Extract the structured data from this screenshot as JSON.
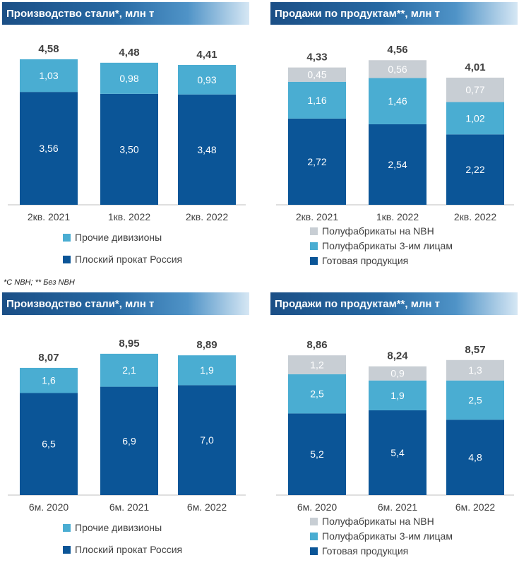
{
  "colors": {
    "dark": "#0b5597",
    "mid": "#4aadd2",
    "light": "#c8ced4",
    "text_dark": "#ffffff",
    "text_mid": "#ffffff",
    "text_light": "#ffffff",
    "total": "#404040"
  },
  "footnote": "*С NBH; ** Без NBH",
  "chart_data": [
    {
      "type": "bar",
      "stacked": true,
      "title": "Производство стали*, млн т",
      "categories": [
        "2кв. 2021",
        "1кв. 2022",
        "2кв. 2022"
      ],
      "series": [
        {
          "name": "Плоский прокат Россия",
          "color_key": "dark",
          "values": [
            3.56,
            3.5,
            3.48
          ],
          "labels": [
            "3,56",
            "3,50",
            "3,48"
          ]
        },
        {
          "name": "Прочие дивизионы",
          "color_key": "mid",
          "values": [
            1.03,
            0.98,
            0.93
          ],
          "labels": [
            "1,03",
            "0,98",
            "0,93"
          ]
        }
      ],
      "totals": [
        4.58,
        4.48,
        4.41
      ],
      "total_labels": [
        "4,58",
        "4,48",
        "4,41"
      ],
      "ylim": [
        0,
        5.1
      ],
      "legend": [
        "Прочие дивизионы",
        "Плоский прокат Россия"
      ],
      "legend_placement": "bottom-left"
    },
    {
      "type": "bar",
      "stacked": true,
      "title": "Продажи по продуктам**, млн т",
      "categories": [
        "2кв. 2021",
        "1кв. 2022",
        "2кв. 2022"
      ],
      "series": [
        {
          "name": "Готовая продукция",
          "color_key": "dark",
          "values": [
            2.72,
            2.54,
            2.22
          ],
          "labels": [
            "2,72",
            "2,54",
            "2,22"
          ]
        },
        {
          "name": "Полуфабрикаты 3-им лицам",
          "color_key": "mid",
          "values": [
            1.16,
            1.46,
            1.02
          ],
          "labels": [
            "1,16",
            "1,46",
            "1,02"
          ]
        },
        {
          "name": "Полуфабрикаты на NBH",
          "color_key": "light",
          "values": [
            0.45,
            0.56,
            0.77
          ],
          "labels": [
            "0,45",
            "0,56",
            "0,77"
          ]
        }
      ],
      "totals": [
        4.33,
        4.56,
        4.01
      ],
      "total_labels": [
        "4,33",
        "4,56",
        "4,01"
      ],
      "ylim": [
        0,
        5.1
      ],
      "legend": [
        "Полуфабрикаты на NBH",
        "Полуфабрикаты 3-им лицам",
        "Готовая продукция"
      ],
      "legend_placement": "bottom-left"
    },
    {
      "type": "bar",
      "stacked": true,
      "title": "Производство стали*, млн т",
      "categories": [
        "6м. 2020",
        "6м. 2021",
        "6м. 2022"
      ],
      "series": [
        {
          "name": "Плоский прокат Россия",
          "color_key": "dark",
          "values": [
            6.5,
            6.9,
            7.0
          ],
          "labels": [
            "6,5",
            "6,9",
            "7,0"
          ]
        },
        {
          "name": "Прочие дивизионы",
          "color_key": "mid",
          "values": [
            1.6,
            2.1,
            1.9
          ],
          "labels": [
            "1,6",
            "2,1",
            "1,9"
          ]
        }
      ],
      "totals": [
        8.07,
        8.95,
        8.89
      ],
      "total_labels": [
        "8,07",
        "8,95",
        "8,89"
      ],
      "ylim": [
        0,
        10.3
      ],
      "legend": [
        "Прочие дивизионы",
        "Плоский прокат Россия"
      ],
      "legend_placement": "bottom-left"
    },
    {
      "type": "bar",
      "stacked": true,
      "title": "Продажи по продуктам**, млн т",
      "categories": [
        "6м. 2020",
        "6м. 2021",
        "6м. 2022"
      ],
      "series": [
        {
          "name": "Готовая продукция",
          "color_key": "dark",
          "values": [
            5.2,
            5.4,
            4.8
          ],
          "labels": [
            "5,2",
            "5,4",
            "4,8"
          ]
        },
        {
          "name": "Полуфабрикаты 3-им лицам",
          "color_key": "mid",
          "values": [
            2.5,
            1.9,
            2.5
          ],
          "labels": [
            "2,5",
            "1,9",
            "2,5"
          ]
        },
        {
          "name": "Полуфабрикаты на NBH",
          "color_key": "light",
          "values": [
            1.2,
            0.9,
            1.3
          ],
          "labels": [
            "1,2",
            "0,9",
            "1,3"
          ]
        }
      ],
      "totals": [
        8.86,
        8.24,
        8.57
      ],
      "total_labels": [
        "8,86",
        "8,24",
        "8,57"
      ],
      "ylim": [
        0,
        10.3
      ],
      "legend": [
        "Полуфабрикаты на NBH",
        "Полуфабрикаты 3-им лицам",
        "Готовая продукция"
      ],
      "legend_placement": "bottom-left"
    }
  ]
}
